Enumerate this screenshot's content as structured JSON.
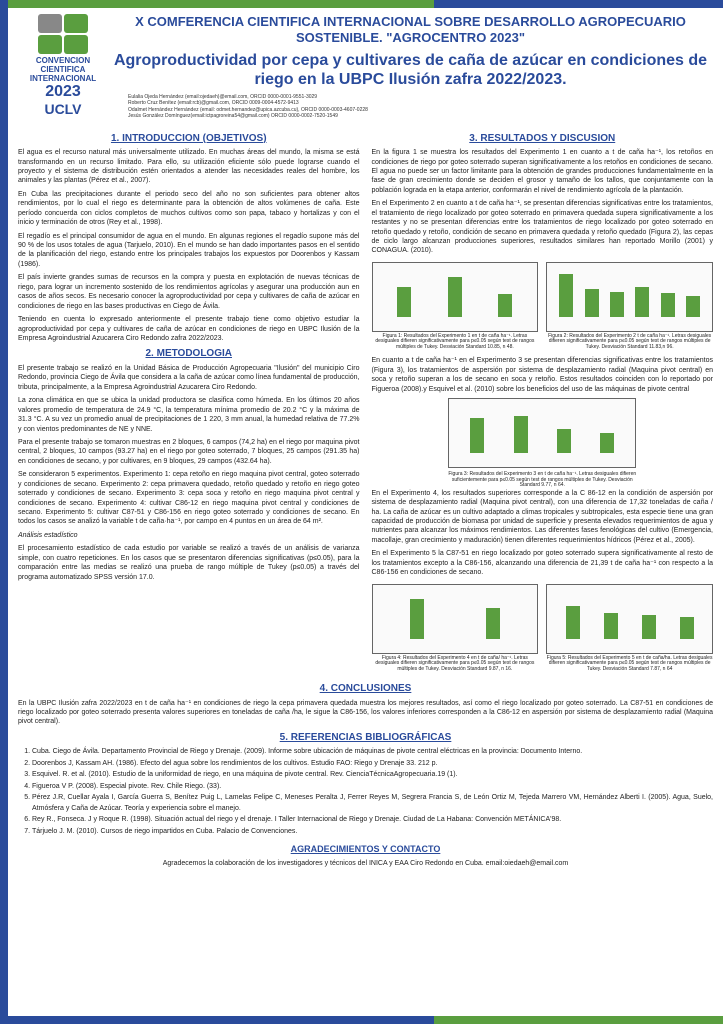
{
  "conference_title": "X COMFERENCIA CIENTIFICA INTERNACIONAL SOBRE DESARROLLO AGROPECUARIO SOSTENIBLE. \"AGROCENTRO 2023\"",
  "main_title": "Agroproductividad por cepa y cultivares de caña de azúcar en condiciones de riego en la UBPC Ilusión zafra 2022/2023.",
  "logo": {
    "line1": "CONVENCION",
    "line2": "CIENTIFICA",
    "line3": "INTERNACIONAL",
    "year": "2023",
    "uclv": "UCLV"
  },
  "authors": {
    "a1": "Eulalia Ojeda Hernández (email:ojedaeh)@email.com, ORCID 0000-0001-9551-3029",
    "a2": "Roberto Cruz Benítez (email:rcb)@gmail.com, ORCID 0009-0004-4572-9413",
    "a3": "Odalmet Hernández Hernández (email: odmet.hernandez@upica.azcuba.cu), ORCID 0000-0003-4607-0228",
    "a4": "Jesús González Domínguez(email:ictpagroreina54@gmail.com) ORCID 0000-0002-7520-1549"
  },
  "sections": {
    "intro_h": "1. INTRODUCCION (OBJETIVOS)",
    "method_h": "2. METODOLOGIA",
    "results_h": "3. RESULTADOS Y DISCUSION",
    "concl_h": "4. CONCLUSIONES",
    "refs_h": "5. REFERENCIAS BIBLIOGRÁFICAS",
    "ack_h": "AGRADECIMIENTOS Y CONTACTO"
  },
  "intro": {
    "p1": "El agua es el recurso natural más universalmente utilizado. En muchas áreas del mundo, la misma se está transformando en un recurso limitado. Para ello, su utilización eficiente sólo puede lograrse cuando el proyecto y el sistema de distribución estén orientados a atender las necesidades reales del hombre, los animales y las plantas (Pérez et al., 2007).",
    "p2": "En Cuba las precipitaciones durante el periodo seco del año no son suficientes para obtener altos rendimientos, por lo cual el riego es determinante para la obtención de altos volúmenes de caña. Este período concuerda con ciclos completos de muchos cultivos como son papa, tabaco y hortalizas y con el inicio y terminación de otros (Rey et al., 1998).",
    "p3": "El regadío es el principal consumidor de agua en el mundo. En algunas regiones el regadío supone más del 90 % de los usos totales de agua (Tarjuelo, 2010). En el mundo se han dado importantes pasos en el sentido de la planificación del riego, estando entre los principales trabajos los expuestos por Doorenbos y Kassam (1986).",
    "p4": "El país invierte grandes sumas de recursos en la compra y puesta en explotación de nuevas técnicas de riego, para lograr un incremento sostenido de los rendimientos agrícolas y asegurar una producción aun en casos de años secos. Es necesario conocer la agroproductividad por cepa y cultivares de caña de azúcar en condiciones de riego en las bases productivas en Ciego de Ávila.",
    "p5": "Teniendo en cuenta lo expresado anteriormente el presente trabajo tiene como objetivo estudiar la agroproductividad por cepa y cultivares de caña de azúcar en condiciones de riego en UBPC Ilusión de la Empresa Agroindustrial Azucarera Ciro Redondo zafra 2022/2023."
  },
  "method": {
    "p1": "El presente trabajo se realizó en la Unidad Básica de Producción Agropecuaria \"Ilusión\" del municipio Ciro Redondo, provincia Ciego de Ávila que considera a la caña de azúcar como línea fundamental de producción, tributa, principalmente, a la Empresa Agroindustrial Azucarera Ciro Redondo.",
    "p2": "La zona climática en que se ubica la unidad productora se clasifica como húmeda. En los últimos 20 años valores promedio de temperatura de 24.9 °C, la temperatura mínima promedio de 20.2 °C y la máxima de 31.3 °C. A su vez un promedio anual de precipitaciones de 1 220, 3 mm anual, la humedad relativa de 77.2% y con vientos predominantes de NE y NNE.",
    "p3": "Para el presente trabajo se tomaron muestras en 2 bloques, 6 campos (74,2 ha) en el riego por maquina pivot central, 2 bloques, 10 campos (93.27 ha) en el riego por goteo soterrado, 7 bloques, 25 campos (291.35 ha) en condiciones de secano, y por cultivares, en 9 bloques, 29 campos (432.64 ha).",
    "p4": "Se consideraron 5 experimentos. Experimento 1: cepa retoño en riego maquina pivot central, goteo soterrado y condiciones de secano. Experimento 2: cepa primavera quedado, retoño quedado y retoño en riego goteo soterrado y condiciones de secano. Experimento 3: cepa soca y retoño en riego maquina pivot central y condiciones de secano. Experimento 4: cultivar C86-12 en riego maquina pivot central y condiciones de secano. Experimento 5: cultivar C87-51 y C86-156 en riego goteo soterrado y condiciones de secano. En todos los casos se analizó la variable t de caña·ha⁻¹, por campo en 4 puntos en un área de 64 m².",
    "p5": "El procesamiento estadístico de cada estudio por variable se realizó a través de un análisis de varianza simple, con cuatro repeticiones. En los casos que se presentaron diferencias significativas (p≤0.05), para la comparación entre las medias se realizó una prueba de rango múltiple de Tukey (p≤0.05) a través del programa automatizado SPSS versión 17.0.",
    "italic": "Análisis estadístico"
  },
  "results": {
    "p1": "En la figura 1 se muestra los resultados del Experimento 1 en cuanto a t de caña ha⁻¹, los retoños en condiciones de riego por goteo soterrado superan significativamente a los retoños en condiciones de secano. El agua no puede ser un factor limitante para la obtención de grandes producciones fundamentalmente en la fase de gran crecimiento donde se deciden el grosor y tamaño de los tallos, que conjuntamente con la población lograda en la etapa anterior, conformarán el nivel de rendimiento agrícola de la plantación.",
    "p2": "En el Experimento 2 en cuanto a t de caña ha⁻¹, se presentan diferencias significativas entre los tratamientos, el tratamiento de riego localizado por goteo soterrado en primavera quedada supera significativamente a los restantes y no se presentan diferencias entre los tratamientos de riego localizado por goteo soterrado en retoño quedado y retoño, condición de secano en primavera quedada y retoño quedado (Figura 2), las cepas de ciclo largo alcanzan producciones superiores, resultados similares han reportado Morillo (2001) y CONAGUA. (2010).",
    "p3": "En cuanto a t de caña ha⁻¹ en el Experimento 3 se presentan diferencias significativas entre los tratamientos (Figura 3), los tratamientos de aspersión por sistema de desplazamiento radial (Maquina pivot central) en soca y retoño superan a los de secano en soca y retoño. Estos resultados coinciden con lo reportado por Figueroa (2008).y Esquivel et al. (2010) sobre los beneficios del uso de las máquinas de pivote central",
    "p4": "En el Experimento 4, los resultados superiores corresponde a la C 86-12 en la condición de aspersión por sistema de desplazamiento radial (Maquina pivot central), con una diferencia de 17,32 toneladas de caña / ha. La caña de azúcar es un cultivo adaptado a climas tropicales y subtropicales, esta especie tiene una gran capacidad de producción de biomasa por unidad de superficie y presenta elevados requerimientos de agua y nutrientes para alcanzar los máximos rendimientos. Las diferentes fases fenológicas del cultivo (Emergencia, macollaje, gran crecimiento y maduración) tienen diferentes requerimientos hídricos (Pérez et al., 2005).",
    "p5": "En el Experimento 5 la C87-51 en riego localizado por goteo soterrado supera significativamente al resto de los tratamientos excepto a la C86-156, alcanzando una diferencia de 21,39 t de caña ha⁻¹ con respecto a la C86-156 en condiciones de secano."
  },
  "captions": {
    "fig1": "Figura 1: Resultados del Experimento 1 en t de caña ha⁻¹. Letras desiguales difieren significativamente para p≤0.05 según test de rangos múltiples de Tukey. Desviación Standard 10.85, n 48.",
    "fig2": "Figura 2: Resultados del Experimento 2 t de caña ha⁻¹. Letras desiguales difieren significativamente para p≤0.05 según test de rangos múltiples de Tukey. Desviación Standard 11.83,n 96.",
    "fig3": "Figura 3: Resultados del Experimento 3 en t de caña ha⁻¹. Letras desiguales difieren suficientemente para p≤0.05 según test de rangos múltiples de Tukey. Desviación Standard 9.77, n 64.",
    "fig4": "Figura 4: Resultados del Experimento 4 en t de caña/ ha⁻¹. Letras desiguales difieren significativamente para p≤0.05 según test de rangos múltiples de Tukey. Desviación Standard 9.87, n 16.",
    "fig5": "Figura 5: Resultados del Experimento 5 en t de caña/ha. Letras desiguales difieren significativamente para p≤0.05 según test de rangos múltiples de Tukey. Desviación Standard 7.87, n 64"
  },
  "charts": {
    "fig1": {
      "values": [
        60,
        80,
        45
      ],
      "max": 100,
      "color": "#5a9e3f"
    },
    "fig2": {
      "values": [
        85,
        55,
        50,
        60,
        48,
        42
      ],
      "max": 100,
      "color": "#5a9e3f"
    },
    "fig3": {
      "values": [
        70,
        75,
        48,
        40
      ],
      "max": 100,
      "color": "#5a9e3f"
    },
    "fig4": {
      "values": [
        80,
        62
      ],
      "max": 100,
      "color": "#5a9e3f"
    },
    "fig5": {
      "values": [
        65,
        52,
        48,
        44
      ],
      "max": 100,
      "color": "#5a9e3f"
    }
  },
  "conclusiones": "En la UBPC Ilusión zafra 2022/2023 en t de caña ha⁻¹ en condiciones de riego la cepa primavera quedada muestra los mejores resultados, así como el riego localizado por goteo soterrado. La C87-51 en condiciones de riego localizado por goteo soterrado presenta valores superiores en toneladas de caña /ha, le sigue la C86-156, los valores inferiores corresponden a la C86-12 en aspersión por sistema de desplazamiento radial (Maquina pivot central).",
  "refs": {
    "r1": "Cuba. Ciego de Ávila. Departamento Provincial de Riego y Drenaje. (2009). Informe sobre ubicación de máquinas de pivote central eléctricas en la provincia: Documento Interno.",
    "r2": "Doorenbos J, Kassam AH. (1986). Efecto del agua sobre los rendimientos de los cultivos. Estudio FAO: Riego y Drenaje 33. 212 p.",
    "r3": "Esquivel. R. et al. (2010). Estudio de la uniformidad de riego, en una máquina de pivote central. Rev. CienciaTécnicaAgropecuaria.19 (1).",
    "r4": "Figueroa V P. (2008). Especial pivote. Rev. Chile Riego. (33).",
    "r5": "Pérez J.R, Cuellar Ayala I, García Guerra S, Benítez Puig L, Lamelas Felipe C, Meneses Peralta J, Ferrer Reyes M, Segrera Francia S, de León Ortiz M, Tejeda Marrero VM, Hernández Alberti I. (2005). Agua, Suelo, Atmósfera y Caña de Azúcar. Teoría y experiencia sobre el manejo.",
    "r6": "Rey R., Fonseca. J y Roque R. (1998). Situación actual del riego y el drenaje. I Taller Internacional de Riego y Drenaje. Ciudad de La Habana: Convención METÁNICA'98.",
    "r7": "Tárjuelo J. M. (2010). Cursos de riego impartidos en Cuba. Palacio de Convenciones."
  },
  "ack": "Agradecemos la colaboración de los investigadores y técnicos del INICA y EAA Ciro Redondo en Cuba. email:oiedaeh@email.com"
}
